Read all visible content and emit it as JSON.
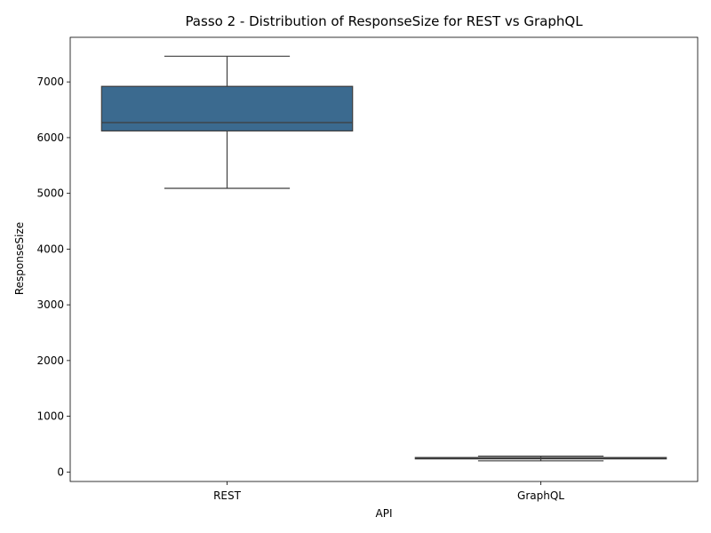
{
  "chart_data": {
    "type": "box",
    "title": "Passo 2 - Distribution of ResponseSize for REST vs GraphQL",
    "xlabel": "API",
    "ylabel": "ResponseSize",
    "categories": [
      "REST",
      "GraphQL"
    ],
    "ylim": [
      -170,
      7800
    ],
    "yticks": [
      0,
      1000,
      2000,
      3000,
      4000,
      5000,
      6000,
      7000
    ],
    "ytick_labels": [
      "0",
      "1000",
      "2000",
      "3000",
      "4000",
      "5000",
      "6000",
      "7000"
    ],
    "grid": false,
    "boxes": [
      {
        "category": "REST",
        "whisker_low": 5090,
        "q1": 6120,
        "median": 6270,
        "q3": 6920,
        "whisker_high": 7460,
        "color": "#3b6a8f"
      },
      {
        "category": "GraphQL",
        "whisker_low": 200,
        "q1": 235,
        "median": 250,
        "q3": 260,
        "whisker_high": 285,
        "color": "#3d7a8c"
      }
    ]
  }
}
